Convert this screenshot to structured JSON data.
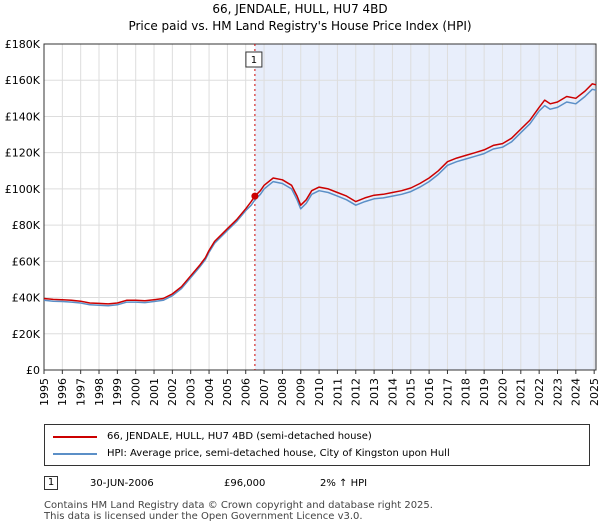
{
  "title_line1": "66, JENDALE, HULL, HU7 4BD",
  "title_line2": "Price paid vs. HM Land Registry's House Price Index (HPI)",
  "colors": {
    "property": "#cc0000",
    "hpi": "#5b8fc7",
    "shade": "#e8eefb",
    "grid": "#dddddd",
    "marker": "#cc0000"
  },
  "chart_data": {
    "type": "line",
    "title": "Price paid vs. HM Land Registry's House Price Index (HPI)",
    "xlabel": "",
    "ylabel": "",
    "xlim": [
      1995.0,
      2025.1
    ],
    "ylim": [
      0,
      180000
    ],
    "y_ticks": [
      0,
      20000,
      40000,
      60000,
      80000,
      100000,
      120000,
      140000,
      160000,
      180000
    ],
    "y_tick_labels": [
      "£0",
      "£20K",
      "£40K",
      "£60K",
      "£80K",
      "£100K",
      "£120K",
      "£140K",
      "£160K",
      "£180K"
    ],
    "x_ticks": [
      1995,
      1996,
      1997,
      1998,
      1999,
      2000,
      2001,
      2002,
      2003,
      2004,
      2005,
      2006,
      2007,
      2008,
      2009,
      2010,
      2011,
      2012,
      2013,
      2014,
      2015,
      2016,
      2017,
      2018,
      2019,
      2020,
      2021,
      2022,
      2023,
      2024,
      2025
    ],
    "x_tick_labels": [
      "1995",
      "1996",
      "1997",
      "1998",
      "1999",
      "2000",
      "2001",
      "2002",
      "2003",
      "2004",
      "2005",
      "2006",
      "2007",
      "2008",
      "2009",
      "2010",
      "2011",
      "2012",
      "2013",
      "2014",
      "2015",
      "2016",
      "2017",
      "2018",
      "2019",
      "2020",
      "2021",
      "2022",
      "2023",
      "2024",
      "2025"
    ],
    "grid": true,
    "shaded_region": {
      "from": 2006.5,
      "to": 2025.1
    },
    "series": [
      {
        "name": "66, JENDALE, HULL, HU7 4BD (semi-detached house)",
        "color": "#cc0000",
        "points": [
          [
            1995.0,
            39500
          ],
          [
            1995.5,
            39000
          ],
          [
            1996.0,
            38800
          ],
          [
            1996.5,
            38500
          ],
          [
            1997.0,
            38000
          ],
          [
            1997.5,
            37000
          ],
          [
            1998.0,
            36800
          ],
          [
            1998.5,
            36500
          ],
          [
            1999.0,
            37000
          ],
          [
            1999.5,
            38500
          ],
          [
            2000.0,
            38500
          ],
          [
            2000.5,
            38200
          ],
          [
            2001.0,
            38800
          ],
          [
            2001.5,
            39500
          ],
          [
            2002.0,
            42000
          ],
          [
            2002.5,
            46000
          ],
          [
            2003.0,
            52000
          ],
          [
            2003.5,
            58000
          ],
          [
            2003.8,
            62000
          ],
          [
            2004.0,
            66000
          ],
          [
            2004.3,
            71000
          ],
          [
            2004.7,
            75000
          ],
          [
            2005.0,
            78000
          ],
          [
            2005.5,
            83000
          ],
          [
            2006.0,
            89000
          ],
          [
            2006.3,
            93000
          ],
          [
            2006.5,
            96000
          ],
          [
            2006.8,
            99000
          ],
          [
            2007.0,
            102000
          ],
          [
            2007.5,
            106000
          ],
          [
            2008.0,
            105000
          ],
          [
            2008.5,
            102000
          ],
          [
            2008.8,
            96000
          ],
          [
            2009.0,
            91000
          ],
          [
            2009.3,
            94000
          ],
          [
            2009.6,
            99000
          ],
          [
            2010.0,
            101000
          ],
          [
            2010.5,
            100000
          ],
          [
            2011.0,
            98000
          ],
          [
            2011.5,
            96000
          ],
          [
            2012.0,
            93000
          ],
          [
            2012.5,
            95000
          ],
          [
            2013.0,
            96500
          ],
          [
            2013.5,
            97000
          ],
          [
            2014.0,
            98000
          ],
          [
            2014.5,
            99000
          ],
          [
            2015.0,
            100500
          ],
          [
            2015.5,
            103000
          ],
          [
            2016.0,
            106000
          ],
          [
            2016.5,
            110000
          ],
          [
            2017.0,
            115000
          ],
          [
            2017.5,
            117000
          ],
          [
            2018.0,
            118500
          ],
          [
            2018.5,
            120000
          ],
          [
            2019.0,
            121500
          ],
          [
            2019.5,
            124000
          ],
          [
            2020.0,
            125000
          ],
          [
            2020.5,
            128000
          ],
          [
            2021.0,
            133000
          ],
          [
            2021.5,
            138000
          ],
          [
            2022.0,
            145000
          ],
          [
            2022.3,
            149000
          ],
          [
            2022.6,
            147000
          ],
          [
            2023.0,
            148000
          ],
          [
            2023.5,
            151000
          ],
          [
            2024.0,
            150000
          ],
          [
            2024.5,
            154000
          ],
          [
            2024.9,
            158000
          ],
          [
            2025.1,
            157500
          ]
        ]
      },
      {
        "name": "HPI: Average price, semi-detached house, City of Kingston upon Hull",
        "color": "#5b8fc7",
        "points": [
          [
            1995.0,
            38500
          ],
          [
            1995.5,
            38000
          ],
          [
            1996.0,
            37800
          ],
          [
            1996.5,
            37500
          ],
          [
            1997.0,
            37000
          ],
          [
            1997.5,
            36000
          ],
          [
            1998.0,
            35800
          ],
          [
            1998.5,
            35500
          ],
          [
            1999.0,
            36000
          ],
          [
            1999.5,
            37500
          ],
          [
            2000.0,
            37500
          ],
          [
            2000.5,
            37200
          ],
          [
            2001.0,
            37800
          ],
          [
            2001.5,
            38500
          ],
          [
            2002.0,
            41000
          ],
          [
            2002.5,
            45000
          ],
          [
            2003.0,
            51000
          ],
          [
            2003.5,
            57000
          ],
          [
            2003.8,
            61000
          ],
          [
            2004.0,
            65000
          ],
          [
            2004.3,
            70000
          ],
          [
            2004.7,
            74000
          ],
          [
            2005.0,
            77000
          ],
          [
            2005.5,
            82000
          ],
          [
            2006.0,
            88000
          ],
          [
            2006.3,
            91000
          ],
          [
            2006.5,
            94000
          ],
          [
            2006.8,
            97000
          ],
          [
            2007.0,
            100000
          ],
          [
            2007.5,
            104000
          ],
          [
            2008.0,
            103000
          ],
          [
            2008.5,
            100000
          ],
          [
            2008.8,
            94000
          ],
          [
            2009.0,
            89000
          ],
          [
            2009.3,
            92000
          ],
          [
            2009.6,
            97000
          ],
          [
            2010.0,
            99000
          ],
          [
            2010.5,
            98000
          ],
          [
            2011.0,
            96000
          ],
          [
            2011.5,
            94000
          ],
          [
            2012.0,
            91000
          ],
          [
            2012.5,
            93000
          ],
          [
            2013.0,
            94500
          ],
          [
            2013.5,
            95000
          ],
          [
            2014.0,
            96000
          ],
          [
            2014.5,
            97000
          ],
          [
            2015.0,
            98500
          ],
          [
            2015.5,
            101000
          ],
          [
            2016.0,
            104000
          ],
          [
            2016.5,
            108000
          ],
          [
            2017.0,
            113000
          ],
          [
            2017.5,
            115000
          ],
          [
            2018.0,
            116500
          ],
          [
            2018.5,
            118000
          ],
          [
            2019.0,
            119500
          ],
          [
            2019.5,
            122000
          ],
          [
            2020.0,
            123000
          ],
          [
            2020.5,
            126000
          ],
          [
            2021.0,
            131000
          ],
          [
            2021.5,
            136000
          ],
          [
            2022.0,
            143000
          ],
          [
            2022.3,
            146000
          ],
          [
            2022.6,
            144000
          ],
          [
            2023.0,
            145000
          ],
          [
            2023.5,
            148000
          ],
          [
            2024.0,
            147000
          ],
          [
            2024.5,
            151000
          ],
          [
            2024.9,
            155000
          ],
          [
            2025.1,
            154500
          ]
        ]
      }
    ],
    "sale_marker": {
      "label": "1",
      "x": 2006.5,
      "y": 96000
    }
  },
  "legend": {
    "property_label": "66, JENDALE, HULL, HU7 4BD (semi-detached house)",
    "hpi_label": "HPI: Average price, semi-detached house, City of Kingston upon Hull"
  },
  "sale": {
    "badge": "1",
    "date": "30-JUN-2006",
    "price": "£96,000",
    "hpi_change": "2% ↑ HPI"
  },
  "footer": {
    "line1": "Contains HM Land Registry data © Crown copyright and database right 2025.",
    "line2": "This data is licensed under the Open Government Licence v3.0."
  }
}
